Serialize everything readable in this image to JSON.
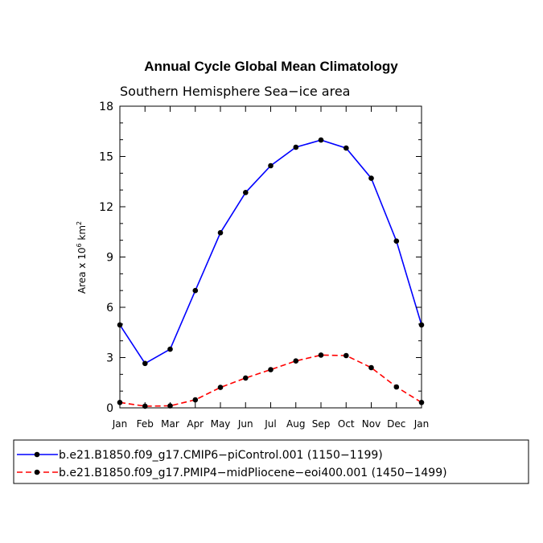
{
  "chart_data": {
    "type": "line",
    "title": "Annual Cycle Global Mean Climatology",
    "subtitle": "Southern Hemisphere Sea−ice area",
    "ylabel_main": "Area x 10",
    "ylabel_sup1": "6",
    "ylabel_mid": " km",
    "ylabel_sup2": "2",
    "ylim": [
      0,
      18
    ],
    "yticks": [
      "0",
      "3",
      "6",
      "9",
      "12",
      "15",
      "18"
    ],
    "categories": [
      "Jan",
      "Feb",
      "Mar",
      "Apr",
      "May",
      "Jun",
      "Jul",
      "Aug",
      "Sep",
      "Oct",
      "Nov",
      "Dec",
      "Jan"
    ],
    "series": [
      {
        "name": "b.e21.B1850.f09_g17.CMIP6−piControl.001 (1150−1199)",
        "color": "#0000ff",
        "dash": "solid",
        "values": [
          4.95,
          2.65,
          3.5,
          7.0,
          10.45,
          12.85,
          14.45,
          15.55,
          15.98,
          15.5,
          13.7,
          9.95,
          4.95
        ]
      },
      {
        "name": "b.e21.B1850.f09_g17.PMIP4−midPliocene−eoi400.001 (1450−1499)",
        "color": "#ff0000",
        "dash": "dashed",
        "values": [
          0.32,
          0.1,
          0.12,
          0.48,
          1.22,
          1.78,
          2.28,
          2.8,
          3.15,
          3.12,
          2.4,
          1.25,
          0.32
        ]
      }
    ]
  }
}
